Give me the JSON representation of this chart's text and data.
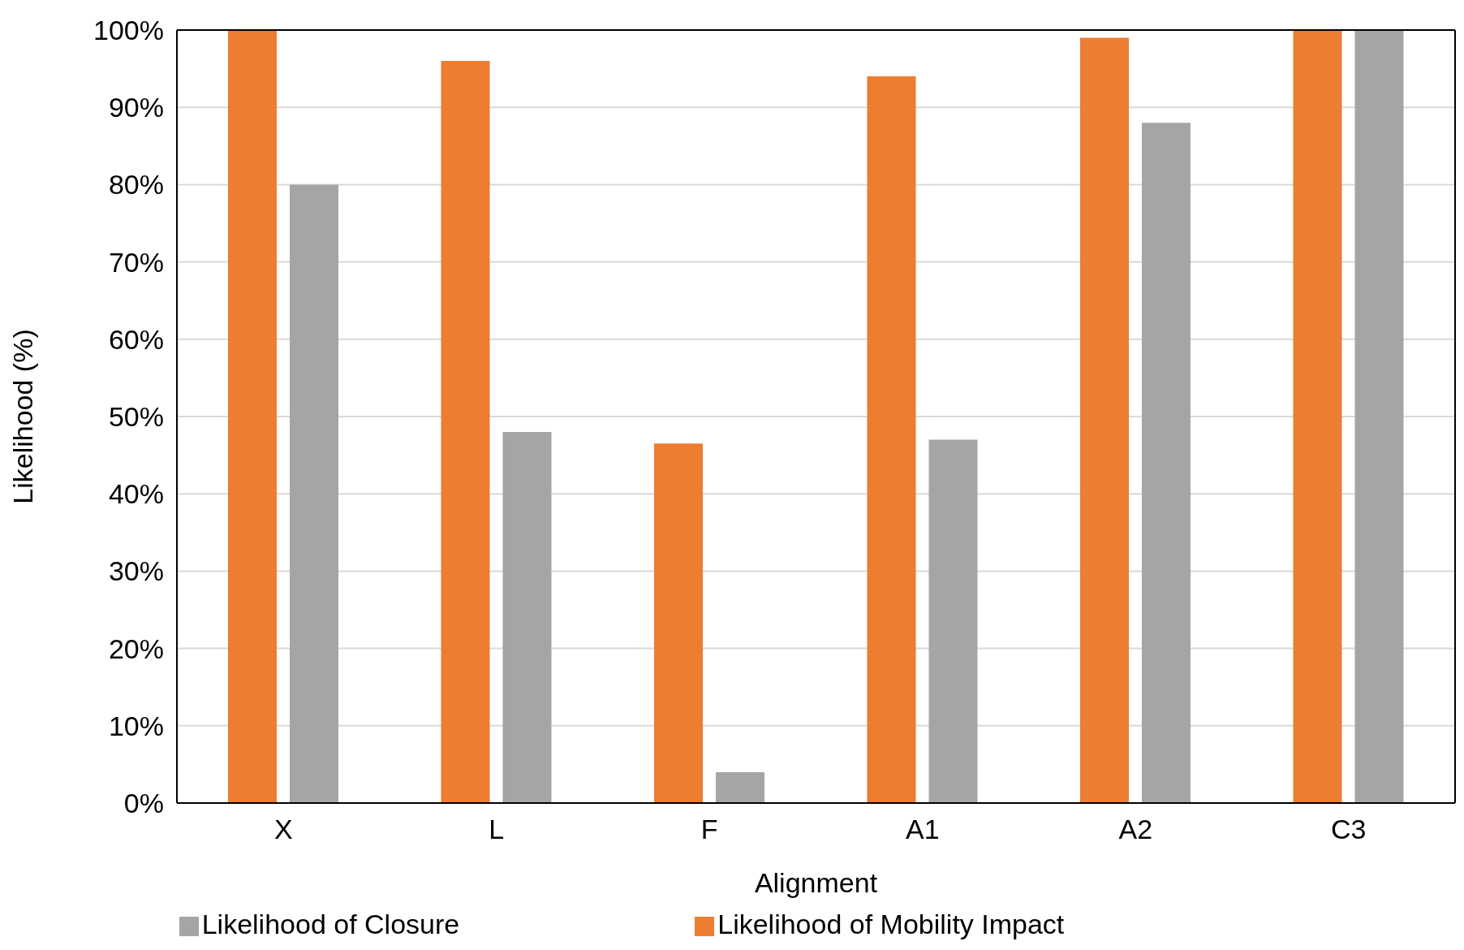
{
  "chart_data": {
    "type": "bar",
    "xlabel": "Alignment",
    "ylabel": "Likelihood (%)",
    "categories": [
      "X",
      "L",
      "F",
      "A1",
      "A2",
      "C3"
    ],
    "series": [
      {
        "name": "Likelihood of Mobility Impact",
        "color": "#ed7d31",
        "values": [
          100,
          96,
          46.5,
          94,
          99,
          100
        ]
      },
      {
        "name": "Likelihood of Closure",
        "color": "#a5a5a5",
        "values": [
          80,
          48,
          4,
          47,
          88,
          100
        ]
      }
    ],
    "ylim": [
      0,
      100
    ],
    "yticks": [
      {
        "value": 0,
        "label": "0%"
      },
      {
        "value": 10,
        "label": "10%"
      },
      {
        "value": 20,
        "label": "20%"
      },
      {
        "value": 30,
        "label": "30%"
      },
      {
        "value": 40,
        "label": "40%"
      },
      {
        "value": 50,
        "label": "50%"
      },
      {
        "value": 60,
        "label": "60%"
      },
      {
        "value": 70,
        "label": "70%"
      },
      {
        "value": 80,
        "label": "80%"
      },
      {
        "value": 90,
        "label": "90%"
      },
      {
        "value": 100,
        "label": "100%"
      }
    ],
    "grid": "y",
    "legend": "bottom"
  }
}
